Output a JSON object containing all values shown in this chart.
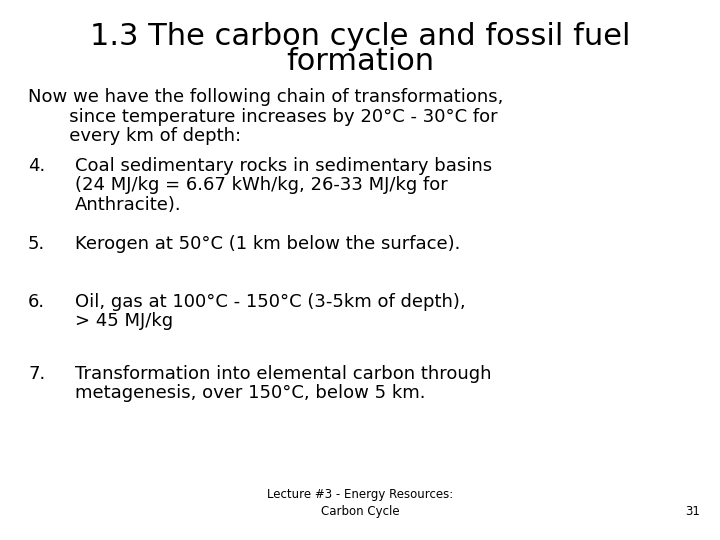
{
  "title_line1": "1.3 The carbon cycle and fossil fuel",
  "title_line2": "formation",
  "title_fontsize": 22,
  "body_fontsize": 13,
  "footer_fontsize": 8.5,
  "background_color": "#ffffff",
  "text_color": "#000000",
  "footer_text": "Lecture #3 - Energy Resources:\nCarbon Cycle",
  "footer_page": "31",
  "intro_lines": [
    "Now we have the following chain of transformations,",
    "   since temperature increases by 20°C - 30°C for",
    "   every km of depth:"
  ],
  "items": [
    {
      "num": "4.",
      "lines": [
        "Coal sedimentary rocks in sedimentary basins",
        "(24 MJ/kg = 6.67 kWh/kg, 26-33 MJ/kg for",
        "Anthracite)."
      ]
    },
    {
      "num": "5.",
      "lines": [
        "Kerogen at 50°C (1 km below the surface)."
      ]
    },
    {
      "num": "6.",
      "lines": [
        "Oil, gas at 100°C - 150°C (3-5km of depth),",
        "> 45 MJ/kg"
      ]
    },
    {
      "num": "7.",
      "lines": [
        "Transformation into elemental carbon through",
        "metagenesis, over 150°C, below 5 km."
      ]
    }
  ]
}
